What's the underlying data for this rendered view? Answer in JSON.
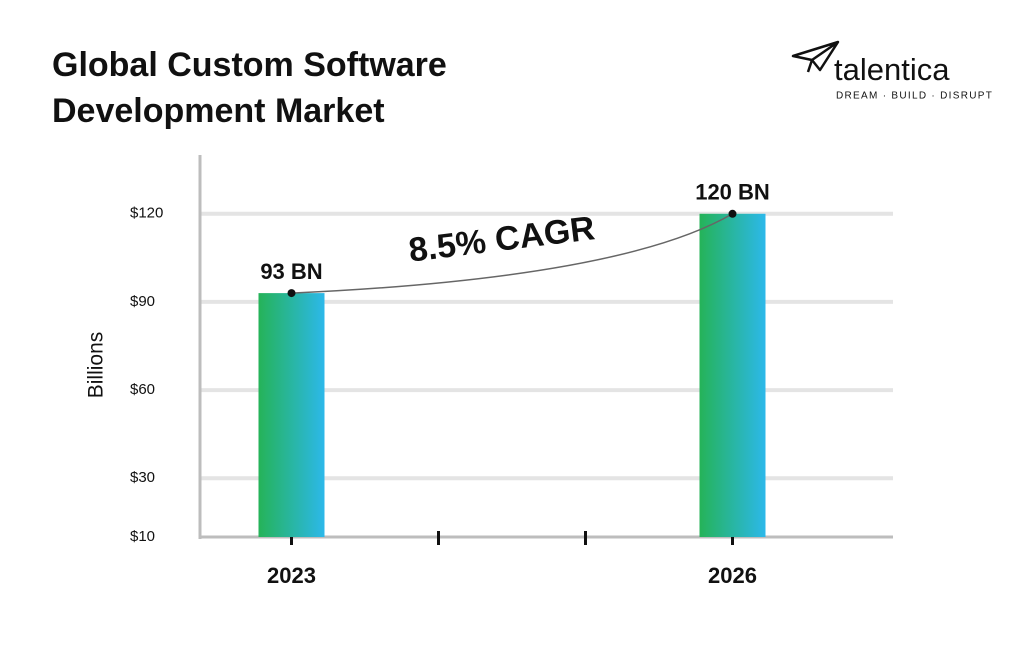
{
  "logo": {
    "name": "talentica",
    "tagline": "DREAM · BUILD · DISRUPT"
  },
  "chart_data": {
    "type": "bar",
    "title": "Global Custom Software Development Market",
    "y_label": "Billions",
    "annotation": "8.5% CAGR",
    "categories": [
      "2023",
      null,
      null,
      "2026"
    ],
    "values": [
      93,
      null,
      null,
      120
    ],
    "value_labels": [
      "93 BN",
      null,
      null,
      "120 BN"
    ],
    "gradient": [
      "#25b358",
      "#2cb8ea"
    ],
    "ylim": [
      10,
      140
    ],
    "yticks": [
      {
        "value": 10,
        "label": "$10"
      },
      {
        "value": 30,
        "label": "$30"
      },
      {
        "value": 60,
        "label": "$60"
      },
      {
        "value": 90,
        "label": "$90"
      },
      {
        "value": 120,
        "label": "$120"
      }
    ],
    "grid": true
  }
}
